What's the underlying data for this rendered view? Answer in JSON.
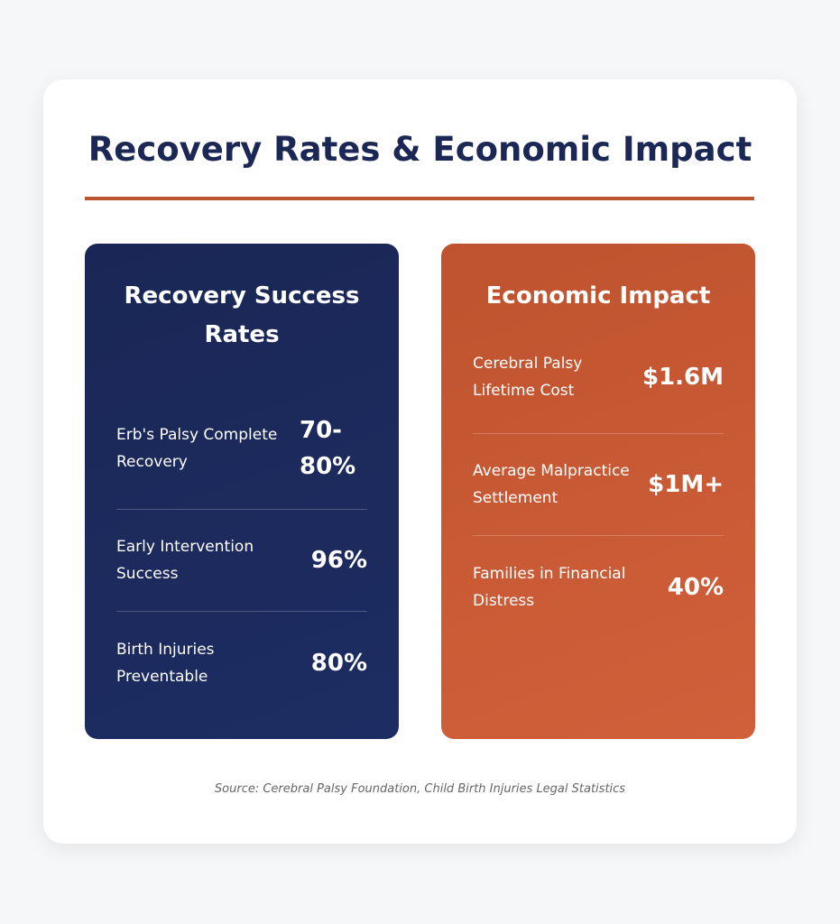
{
  "title": "Recovery Rates & Economic Impact",
  "recovery": {
    "title": "Recovery Success Rates",
    "stats": [
      {
        "label": "Erb's Palsy Complete Recovery",
        "value": "70-80%"
      },
      {
        "label": "Early Intervention Success",
        "value": "96%"
      },
      {
        "label": "Birth Injuries Preventable",
        "value": "80%"
      }
    ]
  },
  "economic": {
    "title": "Economic Impact",
    "stats": [
      {
        "label": "Cerebral Palsy Lifetime Cost",
        "value": "$1.6M"
      },
      {
        "label": "Average Malpractice Settlement",
        "value": "$1M+"
      },
      {
        "label": "Families in Financial Distress",
        "value": "40%"
      }
    ]
  },
  "source": "Source: Cerebral Palsy Foundation, Child Birth Injuries Legal Statistics",
  "colors": {
    "navy": "#1b2754",
    "accent": "#bf5430"
  }
}
